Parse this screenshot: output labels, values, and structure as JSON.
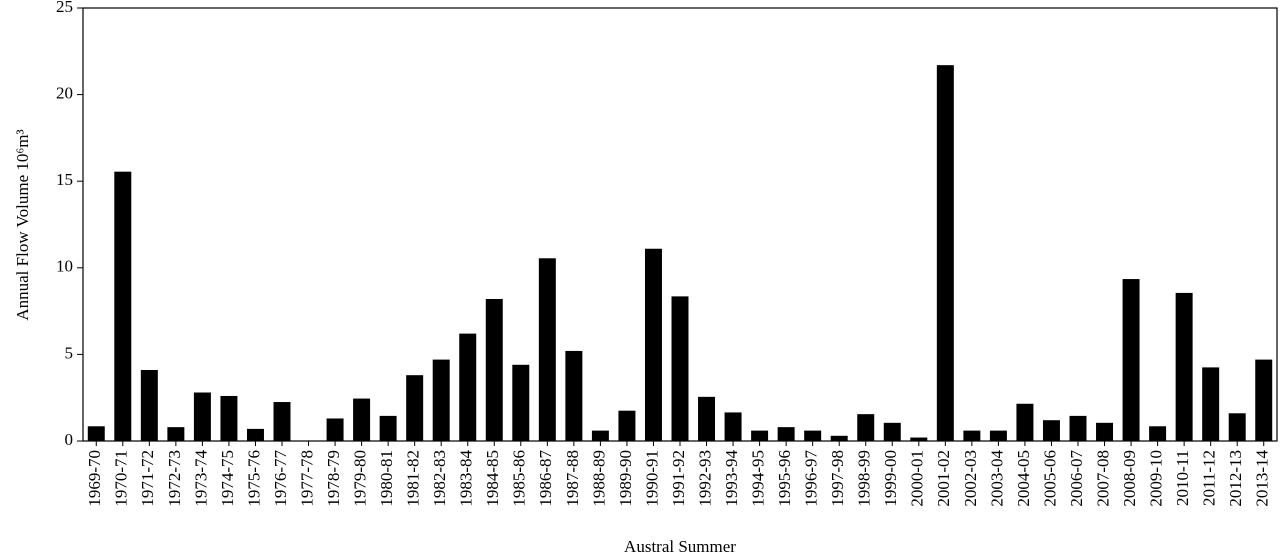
{
  "chart_data": {
    "type": "bar",
    "xlabel": "Austral Summer",
    "ylabel": "Annual Flow Volume 10⁶m³",
    "categories": [
      "1969-70",
      "1970-71",
      "1971-72",
      "1972-73",
      "1973-74",
      "1974-75",
      "1975-76",
      "1976-77",
      "1977-78",
      "1978-79",
      "1979-80",
      "1980-81",
      "1981-82",
      "1982-83",
      "1983-84",
      "1984-85",
      "1985-86",
      "1986-87",
      "1987-88",
      "1988-89",
      "1989-90",
      "1990-91",
      "1991-92",
      "1992-93",
      "1993-94",
      "1994-95",
      "1995-96",
      "1996-97",
      "1997-98",
      "1998-99",
      "1999-00",
      "2000-01",
      "2001-02",
      "2002-03",
      "2003-04",
      "2004-05",
      "2005-06",
      "2006-07",
      "2007-08",
      "2008-09",
      "2009-10",
      "2010-11",
      "2011-12",
      "2012-13",
      "2013-14"
    ],
    "values": [
      0.85,
      15.55,
      4.1,
      0.8,
      2.8,
      2.6,
      0.7,
      2.25,
      0,
      1.3,
      2.45,
      1.45,
      3.8,
      4.7,
      6.2,
      8.2,
      4.4,
      10.55,
      5.2,
      0.6,
      1.75,
      11.1,
      8.35,
      2.55,
      1.65,
      0.6,
      0.8,
      0.6,
      0.3,
      1.55,
      1.05,
      0.2,
      21.7,
      0.6,
      0.6,
      2.15,
      1.2,
      1.45,
      1.05,
      9.35,
      0.85,
      8.55,
      4.25,
      1.6,
      4.7
    ],
    "color": "#000000",
    "ylim": [
      0,
      25
    ],
    "yticks": [
      0,
      5,
      10,
      15,
      20,
      25
    ],
    "grid": false
  }
}
